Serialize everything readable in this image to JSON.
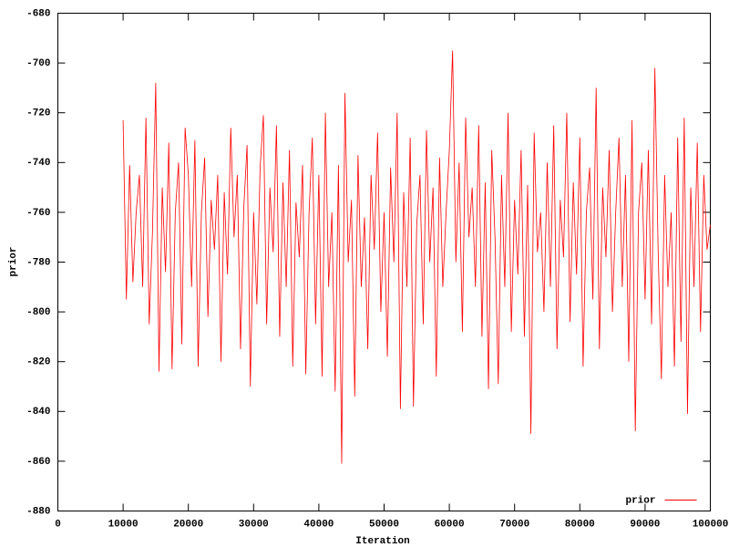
{
  "chart_data": {
    "type": "line",
    "xlabel": "Iteration",
    "ylabel": "prior",
    "xlim": [
      0,
      100000
    ],
    "xticks": [
      0,
      10000,
      20000,
      30000,
      40000,
      50000,
      60000,
      70000,
      80000,
      90000,
      100000
    ],
    "ylim": [
      -880,
      -680
    ],
    "yticks": [
      -880,
      -860,
      -840,
      -820,
      -800,
      -780,
      -760,
      -740,
      -720,
      -700,
      -680
    ],
    "grid": false,
    "legend": "bottom right",
    "x": [
      10000,
      10500,
      11000,
      11500,
      12000,
      12500,
      13000,
      13500,
      14000,
      14500,
      15000,
      15500,
      16000,
      16500,
      17000,
      17500,
      18000,
      18500,
      19000,
      19500,
      20000,
      20500,
      21000,
      21500,
      22000,
      22500,
      23000,
      23500,
      24000,
      24500,
      25000,
      25500,
      26000,
      26500,
      27000,
      27500,
      28000,
      28500,
      29000,
      29500,
      30000,
      30500,
      31000,
      31500,
      32000,
      32500,
      33000,
      33500,
      34000,
      34500,
      35000,
      35500,
      36000,
      36500,
      37000,
      37500,
      38000,
      38500,
      39000,
      39500,
      40000,
      40500,
      41000,
      41500,
      42000,
      42500,
      43000,
      43500,
      44000,
      44500,
      45000,
      45500,
      46000,
      46500,
      47000,
      47500,
      48000,
      48500,
      49000,
      49500,
      50000,
      50500,
      51000,
      51500,
      52000,
      52500,
      53000,
      53500,
      54000,
      54500,
      55000,
      55500,
      56000,
      56500,
      57000,
      57500,
      58000,
      58500,
      59000,
      59500,
      60000,
      60500,
      61000,
      61500,
      62000,
      62500,
      63000,
      63500,
      64000,
      64500,
      65000,
      65500,
      66000,
      66500,
      67000,
      67500,
      68000,
      68500,
      69000,
      69500,
      70000,
      70500,
      71000,
      71500,
      72000,
      72500,
      73000,
      73500,
      74000,
      74500,
      75000,
      75500,
      76000,
      76500,
      77000,
      77500,
      78000,
      78500,
      79000,
      79500,
      80000,
      80500,
      81000,
      81500,
      82000,
      82500,
      83000,
      83500,
      84000,
      84500,
      85000,
      85500,
      86000,
      86500,
      87000,
      87500,
      88000,
      88500,
      89000,
      89500,
      90000,
      90500,
      91000,
      91500,
      92000,
      92500,
      93000,
      93500,
      94000,
      94500,
      95000,
      95500,
      96000,
      96500,
      97000,
      97500,
      98000,
      98500,
      99000,
      99500,
      100000
    ],
    "series": [
      {
        "name": "prior",
        "color": "#ff0000",
        "values": [
          -723,
          -795,
          -741,
          -788,
          -760,
          -745,
          -790,
          -722,
          -805,
          -768,
          -708,
          -824,
          -750,
          -784,
          -732,
          -823,
          -760,
          -740,
          -813,
          -726,
          -745,
          -790,
          -731,
          -822,
          -760,
          -738,
          -802,
          -755,
          -775,
          -745,
          -820,
          -752,
          -785,
          -726,
          -770,
          -745,
          -815,
          -758,
          -733,
          -830,
          -760,
          -797,
          -742,
          -721,
          -805,
          -750,
          -776,
          -725,
          -810,
          -748,
          -790,
          -735,
          -822,
          -756,
          -778,
          -741,
          -825,
          -760,
          -730,
          -805,
          -745,
          -826,
          -720,
          -790,
          -760,
          -832,
          -741,
          -861,
          -712,
          -780,
          -755,
          -834,
          -737,
          -790,
          -762,
          -815,
          -745,
          -775,
          -728,
          -800,
          -760,
          -818,
          -742,
          -780,
          -720,
          -839,
          -752,
          -790,
          -730,
          -838,
          -765,
          -745,
          -805,
          -727,
          -780,
          -750,
          -826,
          -738,
          -790,
          -760,
          -735,
          -695,
          -780,
          -740,
          -808,
          -722,
          -770,
          -750,
          -790,
          -725,
          -810,
          -748,
          -831,
          -735,
          -770,
          -829,
          -745,
          -790,
          -720,
          -808,
          -755,
          -785,
          -735,
          -810,
          -749,
          -849,
          -728,
          -776,
          -760,
          -800,
          -740,
          -790,
          -725,
          -815,
          -755,
          -778,
          -720,
          -804,
          -748,
          -785,
          -730,
          -822,
          -760,
          -742,
          -795,
          -710,
          -815,
          -750,
          -778,
          -735,
          -800,
          -760,
          -730,
          -790,
          -745,
          -820,
          -723,
          -848,
          -760,
          -740,
          -795,
          -735,
          -805,
          -702,
          -775,
          -827,
          -745,
          -790,
          -760,
          -822,
          -730,
          -812,
          -722,
          -841,
          -750,
          -790,
          -732,
          -808,
          -745,
          -775,
          -765
        ]
      }
    ]
  }
}
